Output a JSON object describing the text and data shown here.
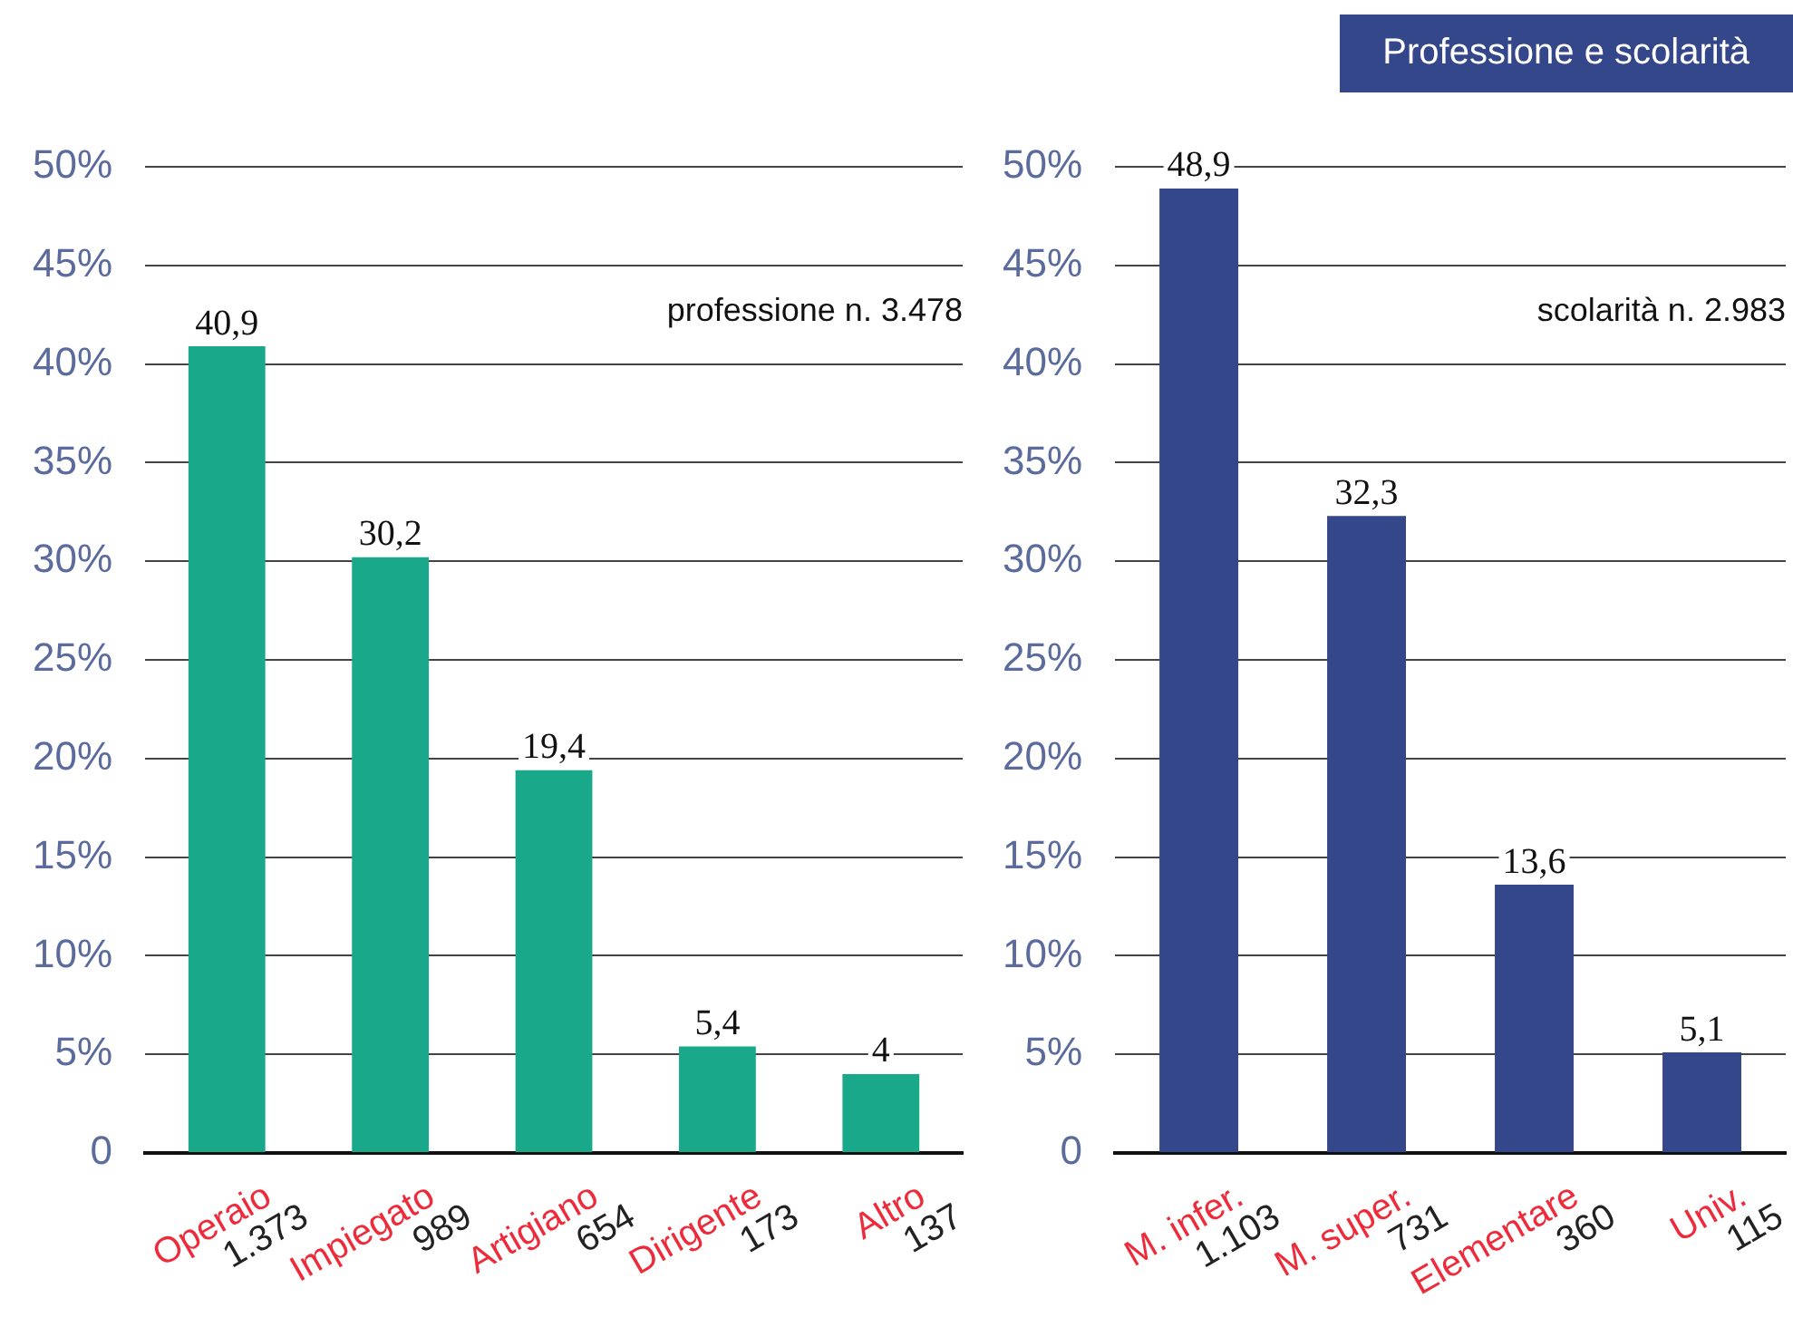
{
  "chart_data": [
    {
      "type": "bar",
      "categories": [
        "Operaio\n1.373",
        "Impiegato\n989",
        "Artigiano\n654",
        "Dirigente\n173",
        "Altro\n137"
      ],
      "values": [
        40.9,
        30.2,
        19.4,
        5.4,
        4
      ],
      "value_labels": [
        "40,9",
        "30,2",
        "19,4",
        "5,4",
        "4"
      ],
      "color": "#1aa88a",
      "ylim": [
        0,
        50
      ],
      "yticks": [
        {
          "value": 0,
          "label": "0"
        },
        {
          "value": 5,
          "label": "5%"
        },
        {
          "value": 10,
          "label": "10%"
        },
        {
          "value": 15,
          "label": "15%"
        },
        {
          "value": 20,
          "label": "20%"
        },
        {
          "value": 25,
          "label": "25%"
        },
        {
          "value": 30,
          "label": "30%"
        },
        {
          "value": 35,
          "label": "35%"
        },
        {
          "value": 40,
          "label": "40%"
        },
        {
          "value": 45,
          "label": "45%"
        },
        {
          "value": 50,
          "label": "50%"
        }
      ],
      "grid": "y",
      "legend": false,
      "annotations": [
        "professione n. 3.478"
      ]
    },
    {
      "type": "bar",
      "title": "Professione e scolarità",
      "categories": [
        "M. infer.\n1.103",
        "M. super.\n731",
        "Elementare\n360",
        "Univ.\n115"
      ],
      "values": [
        48.9,
        32.3,
        13.6,
        5.1
      ],
      "value_labels": [
        "48,9",
        "32,3",
        "13,6",
        "5,1"
      ],
      "color": "#34478a",
      "ylim": [
        0,
        50
      ],
      "yticks": [
        {
          "value": 0,
          "label": "0"
        },
        {
          "value": 5,
          "label": "5%"
        },
        {
          "value": 10,
          "label": "10%"
        },
        {
          "value": 15,
          "label": "15%"
        },
        {
          "value": 20,
          "label": "20%"
        },
        {
          "value": 25,
          "label": "25%"
        },
        {
          "value": 30,
          "label": "30%"
        },
        {
          "value": 35,
          "label": "35%"
        },
        {
          "value": 40,
          "label": "40%"
        },
        {
          "value": 45,
          "label": "45%"
        },
        {
          "value": 50,
          "label": "50%"
        }
      ],
      "grid": "y",
      "legend": false,
      "annotations": [
        "scolarità n. 2.983"
      ]
    }
  ]
}
